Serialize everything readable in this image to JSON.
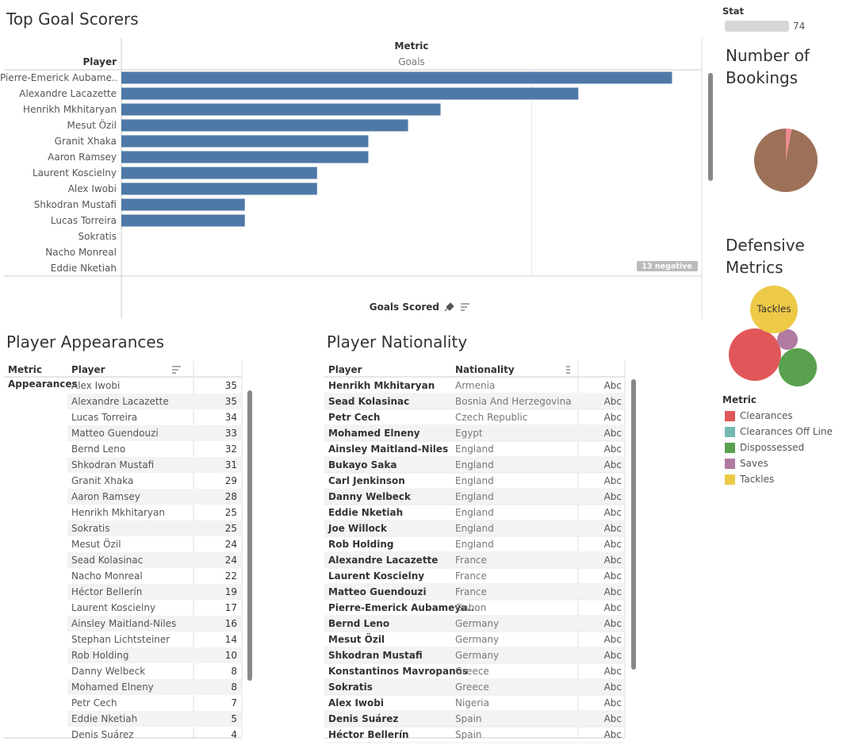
{
  "goal_scorers": {
    "title": "Top Goal Scorers",
    "metric_header": "Metric",
    "metric_value": "Goals",
    "player_header": "Player",
    "axis_label": "Goals Scored",
    "negative_note": "13 negative",
    "players": [
      "Pierre-Emerick Aubame..",
      "Alexandre Lacazette",
      "Henrikh Mkhitaryan",
      "Mesut Özil",
      "Granit Xhaka",
      "Aaron Ramsey",
      "Laurent Koscielny",
      "Alex Iwobi",
      "Shkodran Mustafi",
      "Lucas Torreira",
      "Sokratis",
      "Nacho Monreal",
      "Eddie Nketiah"
    ],
    "values": [
      22,
      13,
      6,
      5,
      4,
      4,
      3,
      3,
      2,
      2,
      1,
      1,
      1
    ],
    "color": "#4e79a7",
    "log_scale": true,
    "xlim": [
      1,
      26
    ],
    "gridlines": [
      10
    ]
  },
  "stat_filter": {
    "label": "Stat",
    "value": 74
  },
  "bookings": {
    "title": "Number of Bookings",
    "values": [
      3,
      97
    ],
    "colors": [
      "#ef8a8f",
      "#9c7158"
    ]
  },
  "defensive": {
    "title": "Defensive Metrics",
    "legend_title": "Metric",
    "metrics": [
      "Clearances",
      "Clearances Off Line",
      "Dispossessed",
      "Saves",
      "Tackles"
    ],
    "colors": [
      "#e15759",
      "#76b7b2",
      "#59a14f",
      "#b07aa1",
      "#edc948"
    ],
    "values": [
      109,
      null,
      58,
      17,
      90
    ]
  },
  "appearances": {
    "title": "Player Appearances",
    "headers": [
      "Metric",
      "Player"
    ],
    "metric": "Appearances",
    "rows": [
      [
        "Alex Iwobi",
        35
      ],
      [
        "Alexandre Lacazette",
        35
      ],
      [
        "Lucas Torreira",
        34
      ],
      [
        "Matteo Guendouzi",
        33
      ],
      [
        "Bernd Leno",
        32
      ],
      [
        "Shkodran Mustafi",
        31
      ],
      [
        "Granit Xhaka",
        29
      ],
      [
        "Aaron Ramsey",
        28
      ],
      [
        "Henrikh Mkhitaryan",
        25
      ],
      [
        "Sokratis",
        25
      ],
      [
        "Mesut Özil",
        24
      ],
      [
        "Sead Kolasinac",
        24
      ],
      [
        "Nacho Monreal",
        22
      ],
      [
        "Héctor Bellerín",
        19
      ],
      [
        "Laurent Koscielny",
        17
      ],
      [
        "Ainsley Maitland-Niles",
        16
      ],
      [
        "Stephan Lichtsteiner",
        14
      ],
      [
        "Rob Holding",
        10
      ],
      [
        "Danny Welbeck",
        8
      ],
      [
        "Mohamed Elneny",
        8
      ],
      [
        "Petr Cech",
        7
      ],
      [
        "Eddie Nketiah",
        5
      ],
      [
        "Denis Suárez",
        4
      ]
    ]
  },
  "nationality": {
    "title": "Player Nationality",
    "headers": [
      "Player",
      "Nationality"
    ],
    "rows": [
      [
        "Henrikh Mkhitaryan",
        "Armenia",
        "Abc"
      ],
      [
        "Sead Kolasinac",
        "Bosnia And Herzegovina",
        "Abc"
      ],
      [
        "Petr Cech",
        "Czech Republic",
        "Abc"
      ],
      [
        "Mohamed Elneny",
        "Egypt",
        "Abc"
      ],
      [
        "Ainsley Maitland-Niles",
        "England",
        "Abc"
      ],
      [
        "Bukayo Saka",
        "England",
        "Abc"
      ],
      [
        "Carl Jenkinson",
        "England",
        "Abc"
      ],
      [
        "Danny Welbeck",
        "England",
        "Abc"
      ],
      [
        "Eddie Nketiah",
        "England",
        "Abc"
      ],
      [
        "Joe Willock",
        "England",
        "Abc"
      ],
      [
        "Rob Holding",
        "England",
        "Abc"
      ],
      [
        "Alexandre Lacazette",
        "France",
        "Abc"
      ],
      [
        "Laurent Koscielny",
        "France",
        "Abc"
      ],
      [
        "Matteo Guendouzi",
        "France",
        "Abc"
      ],
      [
        "Pierre-Emerick Aubameya..",
        "Gabon",
        "Abc"
      ],
      [
        "Bernd Leno",
        "Germany",
        "Abc"
      ],
      [
        "Mesut Özil",
        "Germany",
        "Abc"
      ],
      [
        "Shkodran Mustafi",
        "Germany",
        "Abc"
      ],
      [
        "Konstantinos Mavropanos",
        "Greece",
        "Abc"
      ],
      [
        "Sokratis",
        "Greece",
        "Abc"
      ],
      [
        "Alex Iwobi",
        "Nigeria",
        "Abc"
      ],
      [
        "Denis Suárez",
        "Spain",
        "Abc"
      ],
      [
        "Héctor Bellerín",
        "Spain",
        "Abc"
      ]
    ]
  }
}
